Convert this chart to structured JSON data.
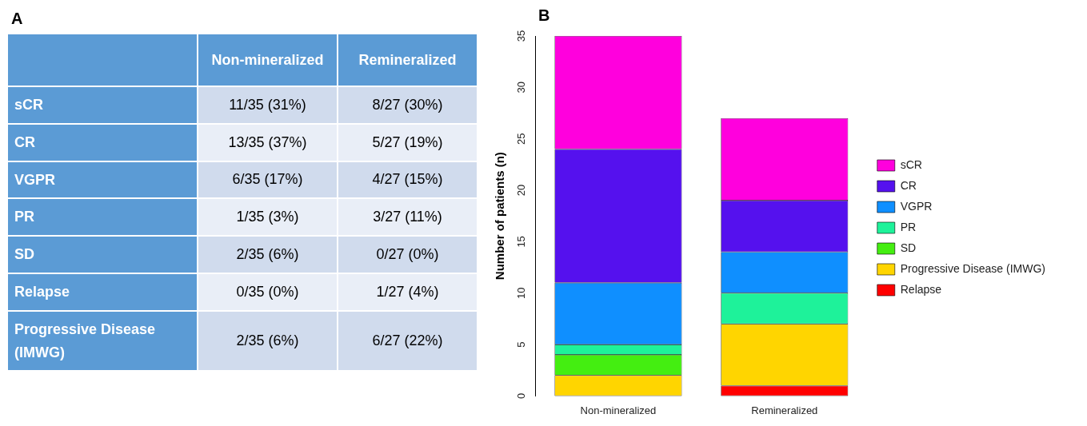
{
  "chart_data": [
    {
      "type": "other",
      "title": "A",
      "categories": [
        "Non-mineralized",
        "Remineralized"
      ],
      "y_categories": [
        "sCR",
        "CR",
        "VGPR",
        "PR",
        "SD",
        "Relapse",
        "Progressive Disease (IMWG)"
      ],
      "cell_labels": [
        [
          "11/35 (31%)",
          "8/27 (30%)"
        ],
        [
          "13/35 (37%)",
          "5/27 (19%)"
        ],
        [
          "6/35 (17%)",
          "4/27 (15%)"
        ],
        [
          "1/35 (3%)",
          "3/27 (11%)"
        ],
        [
          "2/35 (6%)",
          "0/27 (0%)"
        ],
        [
          "0/35 (0%)",
          "1/27 (4%)"
        ],
        [
          "2/35 (6%)",
          "6/27 (22%)"
        ]
      ]
    },
    {
      "type": "bar",
      "title": "B",
      "stacked": true,
      "categories": [
        "Non-mineralized",
        "Remineralized"
      ],
      "ylabel": "Number of patients (n)",
      "ylim": [
        0,
        35
      ],
      "yticks": [
        0,
        5,
        10,
        15,
        20,
        25,
        30,
        35
      ],
      "grid": false,
      "legend": "right",
      "series": [
        {
          "name": "Relapse",
          "color": "#ff0000",
          "values": [
            0,
            1
          ]
        },
        {
          "name": "Progressive Disease (IMWG)",
          "color": "#ffd500",
          "values": [
            2,
            6
          ]
        },
        {
          "name": "SD",
          "color": "#44ee11",
          "values": [
            2,
            0
          ]
        },
        {
          "name": "PR",
          "color": "#1ef29a",
          "values": [
            1,
            3
          ]
        },
        {
          "name": "VGPR",
          "color": "#0f8fff",
          "values": [
            6,
            4
          ]
        },
        {
          "name": "CR",
          "color": "#5511ee",
          "values": [
            13,
            5
          ]
        },
        {
          "name": "sCR",
          "color": "#ff00dd",
          "values": [
            11,
            8
          ]
        }
      ]
    }
  ]
}
